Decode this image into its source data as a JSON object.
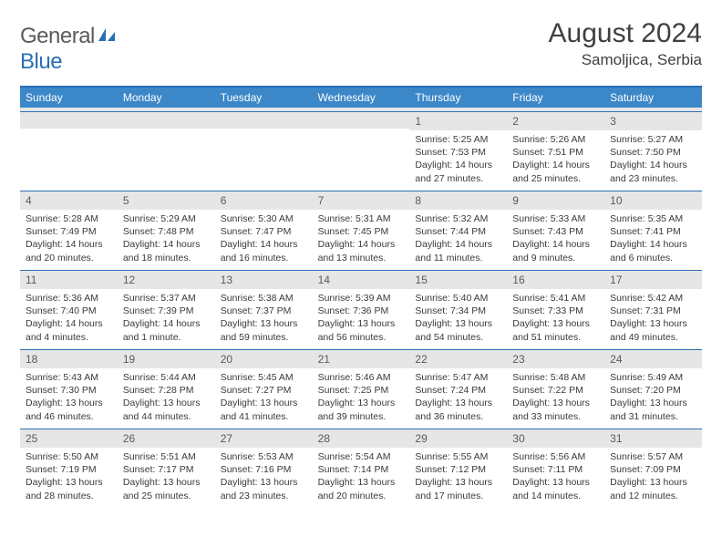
{
  "brand": {
    "part1": "General",
    "part2": "Blue"
  },
  "title": "August 2024",
  "location": "Samoljica, Serbia",
  "colors": {
    "header_bar": "#3b87c8",
    "divider": "#2a6fb5",
    "daynum_bg": "#e6e6e6",
    "text": "#3a3a3a"
  },
  "weekdays": [
    "Sunday",
    "Monday",
    "Tuesday",
    "Wednesday",
    "Thursday",
    "Friday",
    "Saturday"
  ],
  "weeks": [
    [
      {
        "n": "",
        "sr": "",
        "ss": "",
        "dl": ""
      },
      {
        "n": "",
        "sr": "",
        "ss": "",
        "dl": ""
      },
      {
        "n": "",
        "sr": "",
        "ss": "",
        "dl": ""
      },
      {
        "n": "",
        "sr": "",
        "ss": "",
        "dl": ""
      },
      {
        "n": "1",
        "sr": "Sunrise: 5:25 AM",
        "ss": "Sunset: 7:53 PM",
        "dl": "Daylight: 14 hours and 27 minutes."
      },
      {
        "n": "2",
        "sr": "Sunrise: 5:26 AM",
        "ss": "Sunset: 7:51 PM",
        "dl": "Daylight: 14 hours and 25 minutes."
      },
      {
        "n": "3",
        "sr": "Sunrise: 5:27 AM",
        "ss": "Sunset: 7:50 PM",
        "dl": "Daylight: 14 hours and 23 minutes."
      }
    ],
    [
      {
        "n": "4",
        "sr": "Sunrise: 5:28 AM",
        "ss": "Sunset: 7:49 PM",
        "dl": "Daylight: 14 hours and 20 minutes."
      },
      {
        "n": "5",
        "sr": "Sunrise: 5:29 AM",
        "ss": "Sunset: 7:48 PM",
        "dl": "Daylight: 14 hours and 18 minutes."
      },
      {
        "n": "6",
        "sr": "Sunrise: 5:30 AM",
        "ss": "Sunset: 7:47 PM",
        "dl": "Daylight: 14 hours and 16 minutes."
      },
      {
        "n": "7",
        "sr": "Sunrise: 5:31 AM",
        "ss": "Sunset: 7:45 PM",
        "dl": "Daylight: 14 hours and 13 minutes."
      },
      {
        "n": "8",
        "sr": "Sunrise: 5:32 AM",
        "ss": "Sunset: 7:44 PM",
        "dl": "Daylight: 14 hours and 11 minutes."
      },
      {
        "n": "9",
        "sr": "Sunrise: 5:33 AM",
        "ss": "Sunset: 7:43 PM",
        "dl": "Daylight: 14 hours and 9 minutes."
      },
      {
        "n": "10",
        "sr": "Sunrise: 5:35 AM",
        "ss": "Sunset: 7:41 PM",
        "dl": "Daylight: 14 hours and 6 minutes."
      }
    ],
    [
      {
        "n": "11",
        "sr": "Sunrise: 5:36 AM",
        "ss": "Sunset: 7:40 PM",
        "dl": "Daylight: 14 hours and 4 minutes."
      },
      {
        "n": "12",
        "sr": "Sunrise: 5:37 AM",
        "ss": "Sunset: 7:39 PM",
        "dl": "Daylight: 14 hours and 1 minute."
      },
      {
        "n": "13",
        "sr": "Sunrise: 5:38 AM",
        "ss": "Sunset: 7:37 PM",
        "dl": "Daylight: 13 hours and 59 minutes."
      },
      {
        "n": "14",
        "sr": "Sunrise: 5:39 AM",
        "ss": "Sunset: 7:36 PM",
        "dl": "Daylight: 13 hours and 56 minutes."
      },
      {
        "n": "15",
        "sr": "Sunrise: 5:40 AM",
        "ss": "Sunset: 7:34 PM",
        "dl": "Daylight: 13 hours and 54 minutes."
      },
      {
        "n": "16",
        "sr": "Sunrise: 5:41 AM",
        "ss": "Sunset: 7:33 PM",
        "dl": "Daylight: 13 hours and 51 minutes."
      },
      {
        "n": "17",
        "sr": "Sunrise: 5:42 AM",
        "ss": "Sunset: 7:31 PM",
        "dl": "Daylight: 13 hours and 49 minutes."
      }
    ],
    [
      {
        "n": "18",
        "sr": "Sunrise: 5:43 AM",
        "ss": "Sunset: 7:30 PM",
        "dl": "Daylight: 13 hours and 46 minutes."
      },
      {
        "n": "19",
        "sr": "Sunrise: 5:44 AM",
        "ss": "Sunset: 7:28 PM",
        "dl": "Daylight: 13 hours and 44 minutes."
      },
      {
        "n": "20",
        "sr": "Sunrise: 5:45 AM",
        "ss": "Sunset: 7:27 PM",
        "dl": "Daylight: 13 hours and 41 minutes."
      },
      {
        "n": "21",
        "sr": "Sunrise: 5:46 AM",
        "ss": "Sunset: 7:25 PM",
        "dl": "Daylight: 13 hours and 39 minutes."
      },
      {
        "n": "22",
        "sr": "Sunrise: 5:47 AM",
        "ss": "Sunset: 7:24 PM",
        "dl": "Daylight: 13 hours and 36 minutes."
      },
      {
        "n": "23",
        "sr": "Sunrise: 5:48 AM",
        "ss": "Sunset: 7:22 PM",
        "dl": "Daylight: 13 hours and 33 minutes."
      },
      {
        "n": "24",
        "sr": "Sunrise: 5:49 AM",
        "ss": "Sunset: 7:20 PM",
        "dl": "Daylight: 13 hours and 31 minutes."
      }
    ],
    [
      {
        "n": "25",
        "sr": "Sunrise: 5:50 AM",
        "ss": "Sunset: 7:19 PM",
        "dl": "Daylight: 13 hours and 28 minutes."
      },
      {
        "n": "26",
        "sr": "Sunrise: 5:51 AM",
        "ss": "Sunset: 7:17 PM",
        "dl": "Daylight: 13 hours and 25 minutes."
      },
      {
        "n": "27",
        "sr": "Sunrise: 5:53 AM",
        "ss": "Sunset: 7:16 PM",
        "dl": "Daylight: 13 hours and 23 minutes."
      },
      {
        "n": "28",
        "sr": "Sunrise: 5:54 AM",
        "ss": "Sunset: 7:14 PM",
        "dl": "Daylight: 13 hours and 20 minutes."
      },
      {
        "n": "29",
        "sr": "Sunrise: 5:55 AM",
        "ss": "Sunset: 7:12 PM",
        "dl": "Daylight: 13 hours and 17 minutes."
      },
      {
        "n": "30",
        "sr": "Sunrise: 5:56 AM",
        "ss": "Sunset: 7:11 PM",
        "dl": "Daylight: 13 hours and 14 minutes."
      },
      {
        "n": "31",
        "sr": "Sunrise: 5:57 AM",
        "ss": "Sunset: 7:09 PM",
        "dl": "Daylight: 13 hours and 12 minutes."
      }
    ]
  ]
}
